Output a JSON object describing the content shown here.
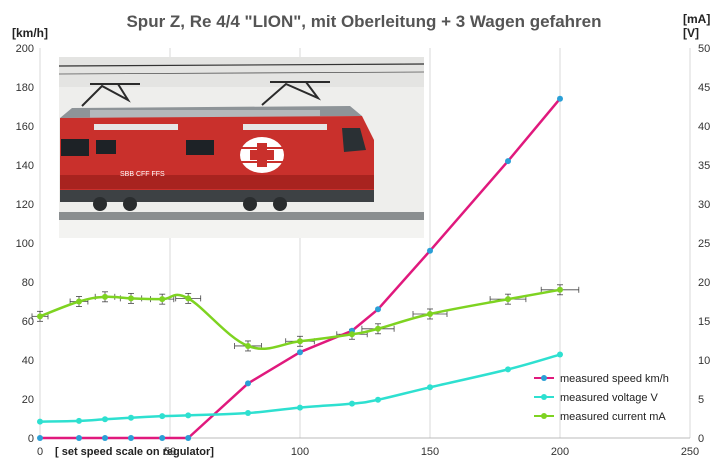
{
  "chart_data": {
    "type": "line",
    "title": "Spur Z, Re 4/4 \"LION\", mit Oberleitung + 3 Wagen gefahren",
    "ylabel_left": "[km/h]",
    "ylabel_right_1": "[mA]",
    "ylabel_right_2": "[V]",
    "xlabel": "[ set speed scale on regulator]",
    "xlim": [
      0,
      250
    ],
    "ylim_left": [
      0,
      200
    ],
    "ylim_right": [
      0,
      50
    ],
    "x_ticks": [
      "0",
      "50",
      "100",
      "150",
      "200",
      "250"
    ],
    "y_left_ticks": [
      "0",
      "20",
      "40",
      "60",
      "80",
      "100",
      "120",
      "140",
      "160",
      "180",
      "200"
    ],
    "y_right_ticks": [
      "0",
      "5",
      "10",
      "15",
      "20",
      "25",
      "30",
      "35",
      "40",
      "45",
      "50"
    ],
    "grid": "vertical",
    "legend_position": "bottom-right",
    "series": [
      {
        "name": "measured speed km/h",
        "axis": "left",
        "color": "#e0197d",
        "marker_color": "#2a9fd6",
        "x": [
          0,
          15,
          25,
          35,
          47,
          57,
          80,
          100,
          120,
          130,
          150,
          180,
          200
        ],
        "y": [
          0,
          0,
          0,
          0,
          0,
          0,
          28,
          44,
          55,
          66,
          96,
          142,
          174
        ]
      },
      {
        "name": "measured voltage V",
        "axis": "right",
        "color": "#2ee0d0",
        "marker_color": "#2ee0d0",
        "x": [
          0,
          15,
          25,
          35,
          47,
          57,
          80,
          100,
          120,
          130,
          150,
          180,
          200
        ],
        "y": [
          2.1,
          2.2,
          2.4,
          2.6,
          2.8,
          2.9,
          3.2,
          3.9,
          4.4,
          4.9,
          6.5,
          8.8,
          10.7
        ]
      },
      {
        "name": "measured current mA",
        "axis": "right",
        "color": "#7ed321",
        "marker_color": "#7ed321",
        "x": [
          0,
          15,
          25,
          35,
          47,
          57,
          80,
          100,
          120,
          130,
          150,
          180,
          200
        ],
        "y": [
          15.6,
          17.5,
          18.1,
          17.9,
          17.8,
          17.9,
          11.8,
          12.4,
          13.3,
          14.0,
          15.9,
          17.8,
          19.0
        ],
        "error_bars": true
      }
    ]
  },
  "photo": {
    "caption": "SBB CFF FFS",
    "subject": "red Re 4/4 locomotive with pantographs"
  }
}
